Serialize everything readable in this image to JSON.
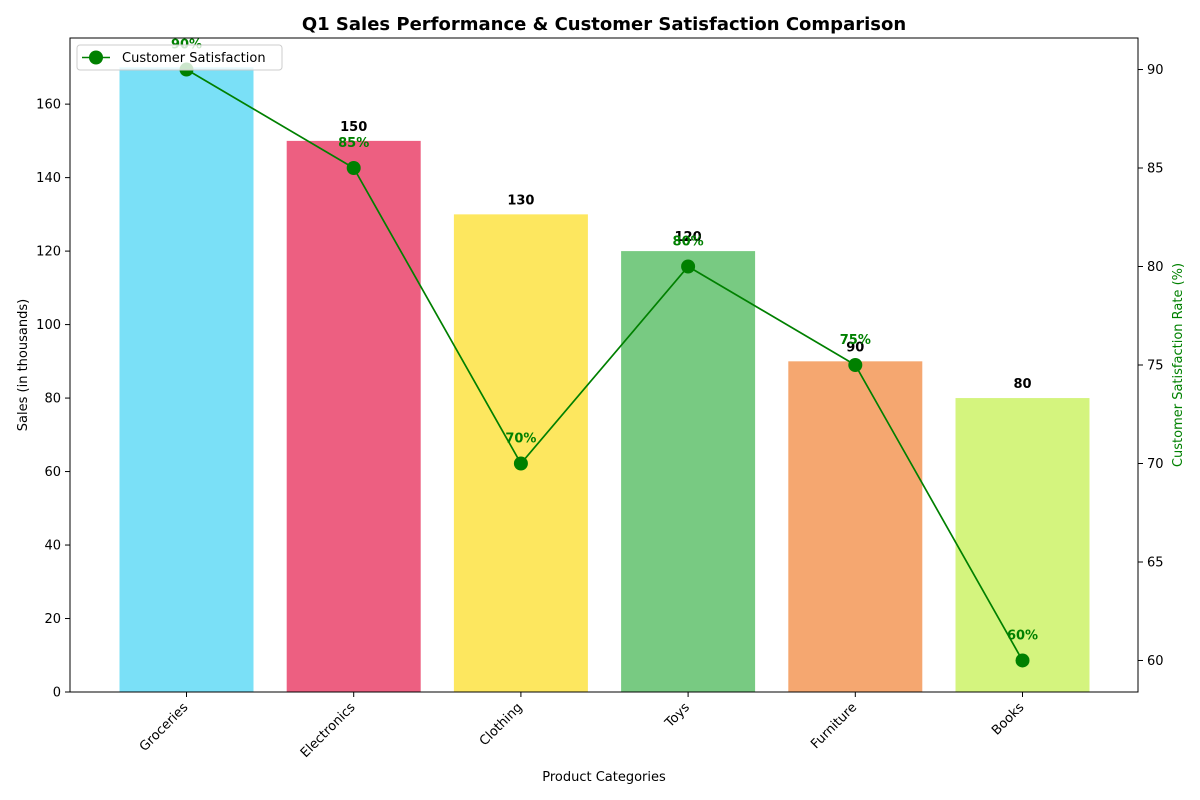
{
  "chart_data": {
    "type": "bar",
    "title": "Q1 Sales Performance & Customer Satisfaction Comparison",
    "xlabel": "Product Categories",
    "ylabel": "Sales (in thousands)",
    "y2label": "Customer Satisfaction Rate (%)",
    "categories": [
      "Groceries",
      "Electronics",
      "Clothing",
      "Toys",
      "Furniture",
      "Books"
    ],
    "series": [
      {
        "values": [
          170,
          150,
          130,
          120,
          90,
          80
        ],
        "colors": [
          "#7ae0f7",
          "#ed5f81",
          "#fde75f",
          "#78ca82",
          "#f5a770",
          "#d4f47e"
        ],
        "value_labels": [
          "",
          "150",
          "130",
          "120",
          "90",
          "80"
        ]
      },
      {
        "name": "Customer Satisfaction",
        "axis": "right",
        "type": "line",
        "color": "#008000",
        "values": [
          90,
          85,
          70,
          80,
          75,
          60
        ],
        "value_labels": [
          "90%",
          "85%",
          "70%",
          "80%",
          "75%",
          "60%"
        ]
      }
    ],
    "ylim": [
      0,
      178
    ],
    "y2lim": [
      58.4,
      91.6
    ],
    "yticks": [
      "0",
      "20",
      "40",
      "60",
      "80",
      "100",
      "120",
      "140",
      "160"
    ],
    "y2ticks": [
      "60",
      "65",
      "70",
      "75",
      "80",
      "85",
      "90"
    ],
    "legend_position": "top-left",
    "grid": false
  }
}
